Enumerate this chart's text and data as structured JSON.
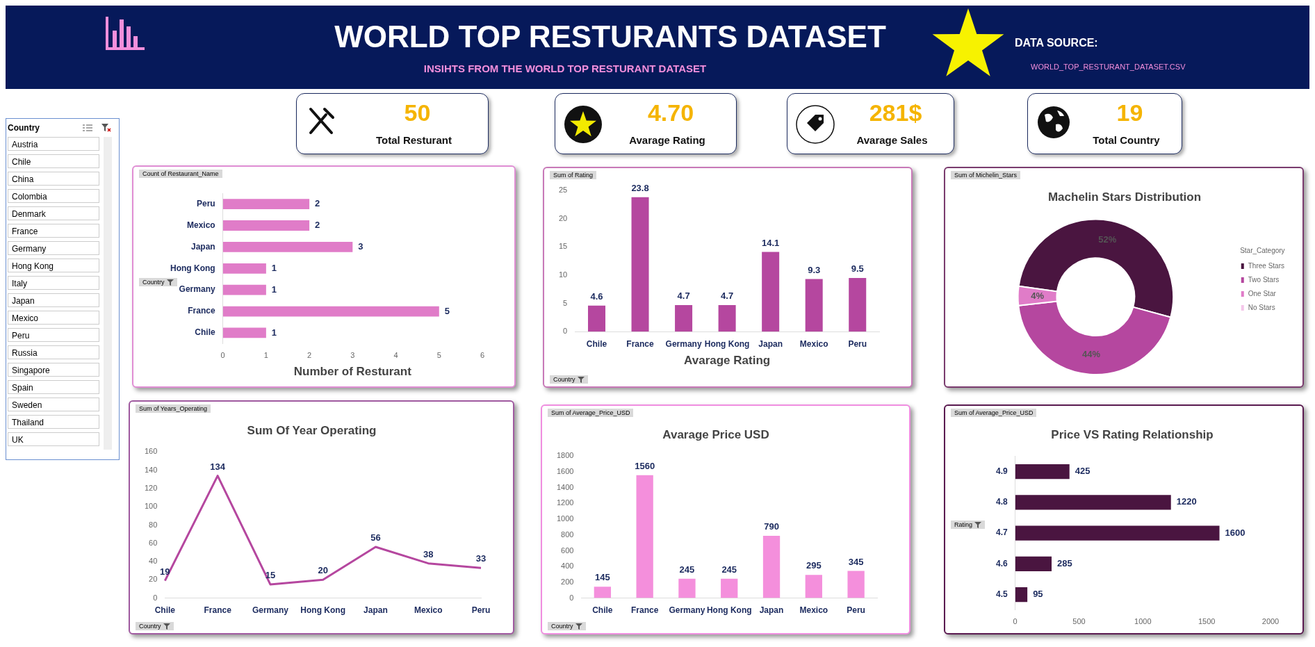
{
  "chart_data": [
    {
      "type": "other",
      "title": "WORLD TOP RESTURANTS DATASET",
      "subtitle": "INSIHTS FROM THE WORLD TOP RESTURANT DATASET",
      "annotations": [
        "DATA SOURCE:",
        "WORLD_TOP_RESTURANT_DATASET.CSV",
        "50",
        "Total Resturant",
        "4.70",
        "Avarage Rating",
        "281$",
        "Avarage Sales",
        "19",
        "Total Country"
      ]
    },
    {
      "type": "other",
      "title": "Country",
      "annotations": [
        "Austria",
        "Chile",
        "China",
        "Colombia",
        "Denmark",
        "France",
        "Germany",
        "Hong Kong",
        "Italy",
        "Japan",
        "Mexico",
        "Peru",
        "Russia",
        "Singapore",
        "Spain",
        "Sweden",
        "Thailand",
        "UK"
      ]
    },
    {
      "type": "bar",
      "orientation": "horizontal",
      "xlabel": "Number of Resturant",
      "categories": [
        "Peru",
        "Mexico",
        "Japan",
        "Hong Kong",
        "Germany",
        "France",
        "Chile"
      ],
      "values": [
        2,
        2,
        3,
        1,
        1,
        5,
        1
      ],
      "color": "#e07cc8",
      "xlim": [
        0,
        6
      ],
      "xticks": [
        0,
        1,
        2,
        3,
        4,
        5,
        6
      ],
      "data_labels": true,
      "annotations": [
        "Count of Restaurant_Name",
        "Country"
      ]
    },
    {
      "type": "bar",
      "xlabel": "Avarage Rating",
      "categories": [
        "Chile",
        "France",
        "Germany",
        "Hong Kong",
        "Japan",
        "Mexico",
        "Peru"
      ],
      "values": [
        4.6,
        23.8,
        4.7,
        4.7,
        14.1,
        9.3,
        9.5
      ],
      "color": "#b5479f",
      "ylim": [
        0,
        25
      ],
      "yticks": [
        0,
        5,
        10,
        15,
        20,
        25
      ],
      "data_labels": true,
      "annotations": [
        "Sum of Rating",
        "Country"
      ]
    },
    {
      "type": "donut",
      "title": "Machelin Stars Distribution",
      "legend_title": "Star_Category",
      "legend": "right",
      "categories": [
        "Three Stars",
        "Two Stars",
        "One Star",
        "No Stars"
      ],
      "values": [
        52,
        44,
        4,
        0
      ],
      "colors": [
        "#4a1540",
        "#b5479f",
        "#e07cc8",
        "#f5c6ea"
      ],
      "value_labels": [
        "52%",
        "44%",
        "4%",
        null
      ],
      "annotations": [
        "Sum of Michelin_Stars"
      ]
    },
    {
      "type": "line",
      "title": "Sum Of Year Operating",
      "categories": [
        "Chile",
        "France",
        "Germany",
        "Hong Kong",
        "Japan",
        "Mexico",
        "Peru"
      ],
      "values": [
        19,
        134,
        15,
        20,
        56,
        38,
        33
      ],
      "color": "#b5479f",
      "ylim": [
        0,
        160
      ],
      "yticks": [
        0,
        20,
        40,
        60,
        80,
        100,
        120,
        140,
        160
      ],
      "data_labels": true,
      "annotations": [
        "Sum of Years_Operating",
        "Country"
      ]
    },
    {
      "type": "bar",
      "title": "Avarage Price USD",
      "categories": [
        "Chile",
        "France",
        "Germany",
        "Hong Kong",
        "Japan",
        "Mexico",
        "Peru"
      ],
      "values": [
        145,
        1560,
        245,
        245,
        790,
        295,
        345
      ],
      "color": "#f48fdc",
      "ylim": [
        0,
        1800
      ],
      "yticks": [
        0,
        200,
        400,
        600,
        800,
        1000,
        1200,
        1400,
        1600,
        1800
      ],
      "data_labels": true,
      "annotations": [
        "Sum of Average_Price_USD",
        "Country"
      ]
    },
    {
      "type": "bar",
      "orientation": "horizontal",
      "title": "Price VS Rating Relationship",
      "categories": [
        "4.9",
        "4.8",
        "4.7",
        "4.6",
        "4.5"
      ],
      "values": [
        425,
        1220,
        1600,
        285,
        95
      ],
      "color": "#4a1540",
      "xlim": [
        0,
        2000
      ],
      "xticks": [
        0,
        500,
        1000,
        1500,
        2000
      ],
      "data_labels": true,
      "annotations": [
        "Sum of Average_Price_USD",
        "Rating"
      ]
    }
  ]
}
